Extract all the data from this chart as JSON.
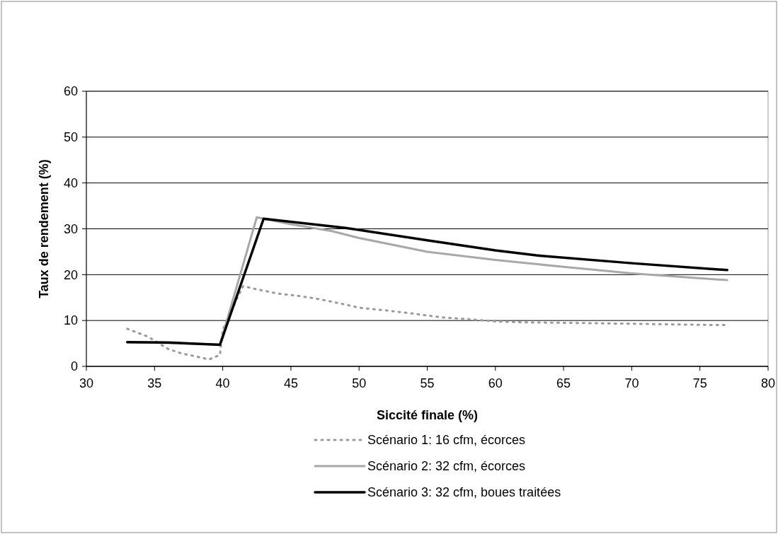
{
  "chart_data": {
    "type": "line",
    "xlabel": "Siccité finale (%)",
    "ylabel": "Taux de rendement (%)",
    "xlim": [
      30,
      80
    ],
    "xticks": [
      30,
      35,
      40,
      45,
      50,
      55,
      60,
      65,
      70,
      75,
      80
    ],
    "ylim": [
      0,
      60
    ],
    "yticks": [
      0,
      10,
      20,
      30,
      40,
      50,
      60
    ],
    "grid": "y",
    "legend": "bottom",
    "series": [
      {
        "name": "Scénario 1: 16 cfm, écorces",
        "color": "#9a9a9a",
        "line_style": "dotted",
        "x": [
          33,
          34.5,
          36,
          37,
          38,
          39,
          39.8,
          40,
          40.5,
          41,
          41.5,
          42.5,
          44,
          45.5,
          47,
          48.5,
          50,
          52,
          54,
          56,
          58,
          60,
          62,
          65,
          70,
          74,
          77
        ],
        "values": [
          8.2,
          6.5,
          3.8,
          2.8,
          2.2,
          1.5,
          2.5,
          8,
          11,
          14.5,
          17.5,
          16.8,
          15.9,
          15.4,
          14.7,
          13.8,
          12.8,
          12.2,
          11.5,
          10.7,
          10.3,
          9.8,
          9.6,
          9.5,
          9.3,
          9.1,
          9.0
        ]
      },
      {
        "name": "Scénario 2: 32 cfm, écorces",
        "color": "#a8a8a8",
        "line_style": "solid",
        "x": [
          33,
          39.8,
          42.5,
          45,
          48,
          50,
          55,
          60,
          65,
          70,
          77
        ],
        "values": [
          5.3,
          4.8,
          32.5,
          31,
          29.5,
          28,
          25,
          23.2,
          21.7,
          20.3,
          18.8
        ]
      },
      {
        "name": "Scénario 3: 32 cfm, boues traitées",
        "color": "#000000",
        "line_style": "solid",
        "x": [
          33,
          36,
          39.8,
          43,
          46,
          49,
          55,
          60,
          63,
          70,
          77
        ],
        "values": [
          5.3,
          5.2,
          4.7,
          32.2,
          31.2,
          30.2,
          27.5,
          25.3,
          24.2,
          22.5,
          21.0
        ]
      }
    ]
  }
}
